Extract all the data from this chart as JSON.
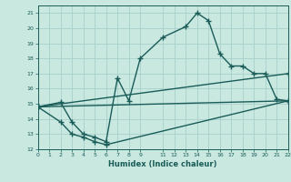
{
  "xlabel": "Humidex (Indice chaleur)",
  "ylabel": "",
  "xlim": [
    0,
    22
  ],
  "ylim": [
    12,
    21.5
  ],
  "yticks": [
    12,
    13,
    14,
    15,
    16,
    17,
    18,
    19,
    20,
    21
  ],
  "xticks": [
    0,
    1,
    2,
    3,
    4,
    5,
    6,
    7,
    8,
    9,
    11,
    12,
    13,
    14,
    15,
    16,
    17,
    18,
    19,
    20,
    21,
    22
  ],
  "bg_color": "#c8e8e0",
  "grid_color": "#a8d0cc",
  "line_color": "#1a5c58",
  "line_width": 1.0,
  "marker": "+",
  "marker_size": 4,
  "lines": [
    {
      "x": [
        0,
        2,
        3,
        4,
        5,
        6,
        7,
        8,
        9,
        11,
        13,
        14,
        15,
        16,
        17,
        18,
        19,
        20,
        21,
        22
      ],
      "y": [
        14.8,
        15.1,
        13.8,
        13.0,
        12.8,
        12.5,
        16.7,
        15.2,
        18.0,
        19.4,
        20.1,
        21.0,
        20.5,
        18.3,
        17.5,
        17.5,
        17.0,
        17.0,
        15.3,
        15.2
      ]
    },
    {
      "x": [
        0,
        2,
        3,
        4,
        5,
        6,
        22
      ],
      "y": [
        14.8,
        13.8,
        13.0,
        12.8,
        12.5,
        12.3,
        15.2
      ]
    },
    {
      "x": [
        0,
        22
      ],
      "y": [
        14.8,
        17.0
      ]
    },
    {
      "x": [
        0,
        22
      ],
      "y": [
        14.8,
        15.2
      ]
    }
  ]
}
